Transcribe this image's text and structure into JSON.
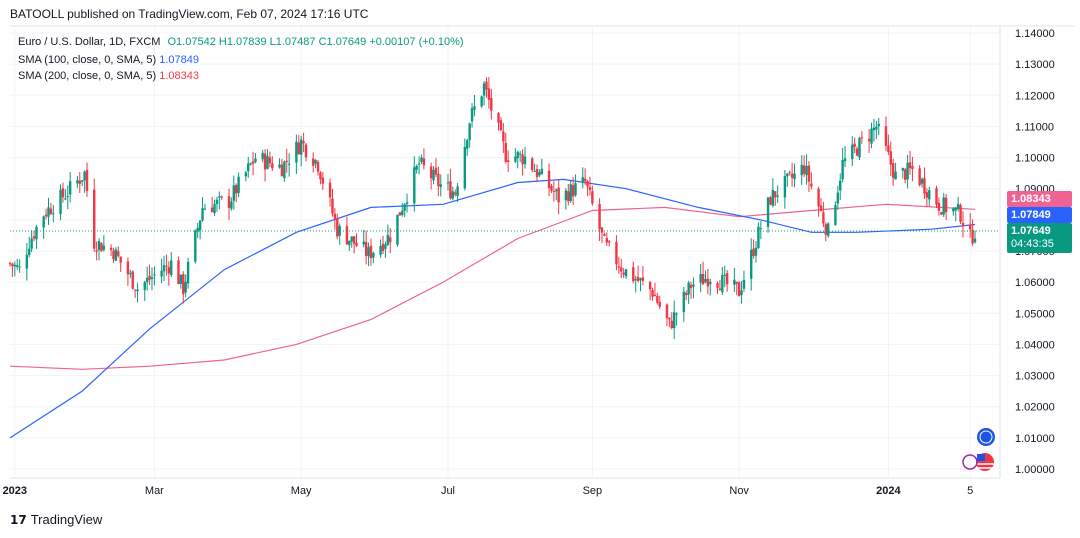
{
  "header": {
    "publisher_line": "BATOOLL published on TradingView.com, Feb 07, 2024 17:16 UTC"
  },
  "legend": {
    "symbol": "Euro / U.S. Dollar, 1D, FXCM",
    "ohlc": "O1.07542  H1.07839  L1.07487  C1.07649  +0.00107 (+0.10%)",
    "sma100_label": "SMA (100, close, 0, SMA, 5)",
    "sma100_value": "1.07849",
    "sma200_label": "SMA (200, close, 0, SMA, 5)",
    "sma200_value": "1.08343"
  },
  "price_tags": {
    "sma200": "1.08343",
    "sma100": "1.07849",
    "last": "1.07649",
    "countdown": "04:43:35"
  },
  "footer": {
    "brand": "TradingView"
  },
  "colors": {
    "up": "#089981",
    "down": "#f23645",
    "sma100": "#2962ff",
    "sma200": "#f06292",
    "grid": "#f0f3fa"
  },
  "chart_data": {
    "type": "candlestick",
    "y_axis_ticks": [
      "1.14000",
      "1.13000",
      "1.12000",
      "1.11000",
      "1.10000",
      "1.09000",
      "1.08000",
      "1.07000",
      "1.06000",
      "1.05000",
      "1.04000",
      "1.03000",
      "1.02000",
      "1.01000",
      "1.00000"
    ],
    "x_axis_ticks": [
      "2023",
      "Mar",
      "May",
      "Jul",
      "Sep",
      "Nov",
      "2024",
      "5"
    ],
    "ylim": [
      1.0,
      1.14
    ],
    "close_path": [
      [
        "2023-01-02",
        1.066
      ],
      [
        "2023-01-06",
        1.064
      ],
      [
        "2023-01-10",
        1.073
      ],
      [
        "2023-01-16",
        1.082
      ],
      [
        "2023-01-26",
        1.089
      ],
      [
        "2023-02-02",
        1.095
      ],
      [
        "2023-02-06",
        1.073
      ],
      [
        "2023-02-14",
        1.07
      ],
      [
        "2023-02-24",
        1.058
      ],
      [
        "2023-03-06",
        1.064
      ],
      [
        "2023-03-10",
        1.066
      ],
      [
        "2023-03-15",
        1.058
      ],
      [
        "2023-03-23",
        1.084
      ],
      [
        "2023-04-03",
        1.086
      ],
      [
        "2023-04-14",
        1.1
      ],
      [
        "2023-04-25",
        1.097
      ],
      [
        "2023-05-03",
        1.105
      ],
      [
        "2023-05-10",
        1.098
      ],
      [
        "2023-05-18",
        1.077
      ],
      [
        "2023-05-31",
        1.069
      ],
      [
        "2023-06-09",
        1.075
      ],
      [
        "2023-06-21",
        1.098
      ],
      [
        "2023-06-30",
        1.091
      ],
      [
        "2023-07-06",
        1.089
      ],
      [
        "2023-07-12",
        1.112
      ],
      [
        "2023-07-18",
        1.123
      ],
      [
        "2023-07-27",
        1.101
      ],
      [
        "2023-08-04",
        1.1
      ],
      [
        "2023-08-18",
        1.087
      ],
      [
        "2023-08-29",
        1.092
      ],
      [
        "2023-09-06",
        1.072
      ],
      [
        "2023-09-14",
        1.064
      ],
      [
        "2023-09-26",
        1.057
      ],
      [
        "2023-10-03",
        1.046
      ],
      [
        "2023-10-12",
        1.059
      ],
      [
        "2023-10-20",
        1.062
      ],
      [
        "2023-11-01",
        1.057
      ],
      [
        "2023-11-14",
        1.087
      ],
      [
        "2023-11-28",
        1.097
      ],
      [
        "2023-12-08",
        1.076
      ],
      [
        "2023-12-14",
        1.098
      ],
      [
        "2023-12-28",
        1.11
      ],
      [
        "2024-01-05",
        1.094
      ],
      [
        "2024-01-12",
        1.096
      ],
      [
        "2024-01-23",
        1.085
      ],
      [
        "2024-02-01",
        1.082
      ],
      [
        "2024-02-05",
        1.074
      ],
      [
        "2024-02-07",
        1.0765
      ]
    ],
    "sma100": [
      [
        "2023-01-02",
        1.01
      ],
      [
        "2023-02-01",
        1.025
      ],
      [
        "2023-03-01",
        1.045
      ],
      [
        "2023-04-01",
        1.064
      ],
      [
        "2023-05-01",
        1.076
      ],
      [
        "2023-06-01",
        1.084
      ],
      [
        "2023-07-01",
        1.085
      ],
      [
        "2023-08-01",
        1.092
      ],
      [
        "2023-08-20",
        1.093
      ],
      [
        "2023-09-15",
        1.09
      ],
      [
        "2023-10-15",
        1.084
      ],
      [
        "2023-11-10",
        1.08
      ],
      [
        "2023-12-01",
        1.076
      ],
      [
        "2023-12-20",
        1.076
      ],
      [
        "2024-01-20",
        1.077
      ],
      [
        "2024-02-07",
        1.0785
      ]
    ],
    "sma200": [
      [
        "2023-01-02",
        1.033
      ],
      [
        "2023-02-01",
        1.032
      ],
      [
        "2023-03-01",
        1.033
      ],
      [
        "2023-04-01",
        1.035
      ],
      [
        "2023-05-01",
        1.04
      ],
      [
        "2023-06-01",
        1.048
      ],
      [
        "2023-07-01",
        1.06
      ],
      [
        "2023-08-01",
        1.074
      ],
      [
        "2023-09-01",
        1.083
      ],
      [
        "2023-10-01",
        1.084
      ],
      [
        "2023-11-01",
        1.081
      ],
      [
        "2023-12-01",
        1.083
      ],
      [
        "2024-01-01",
        1.085
      ],
      [
        "2024-02-07",
        1.0834
      ]
    ]
  }
}
